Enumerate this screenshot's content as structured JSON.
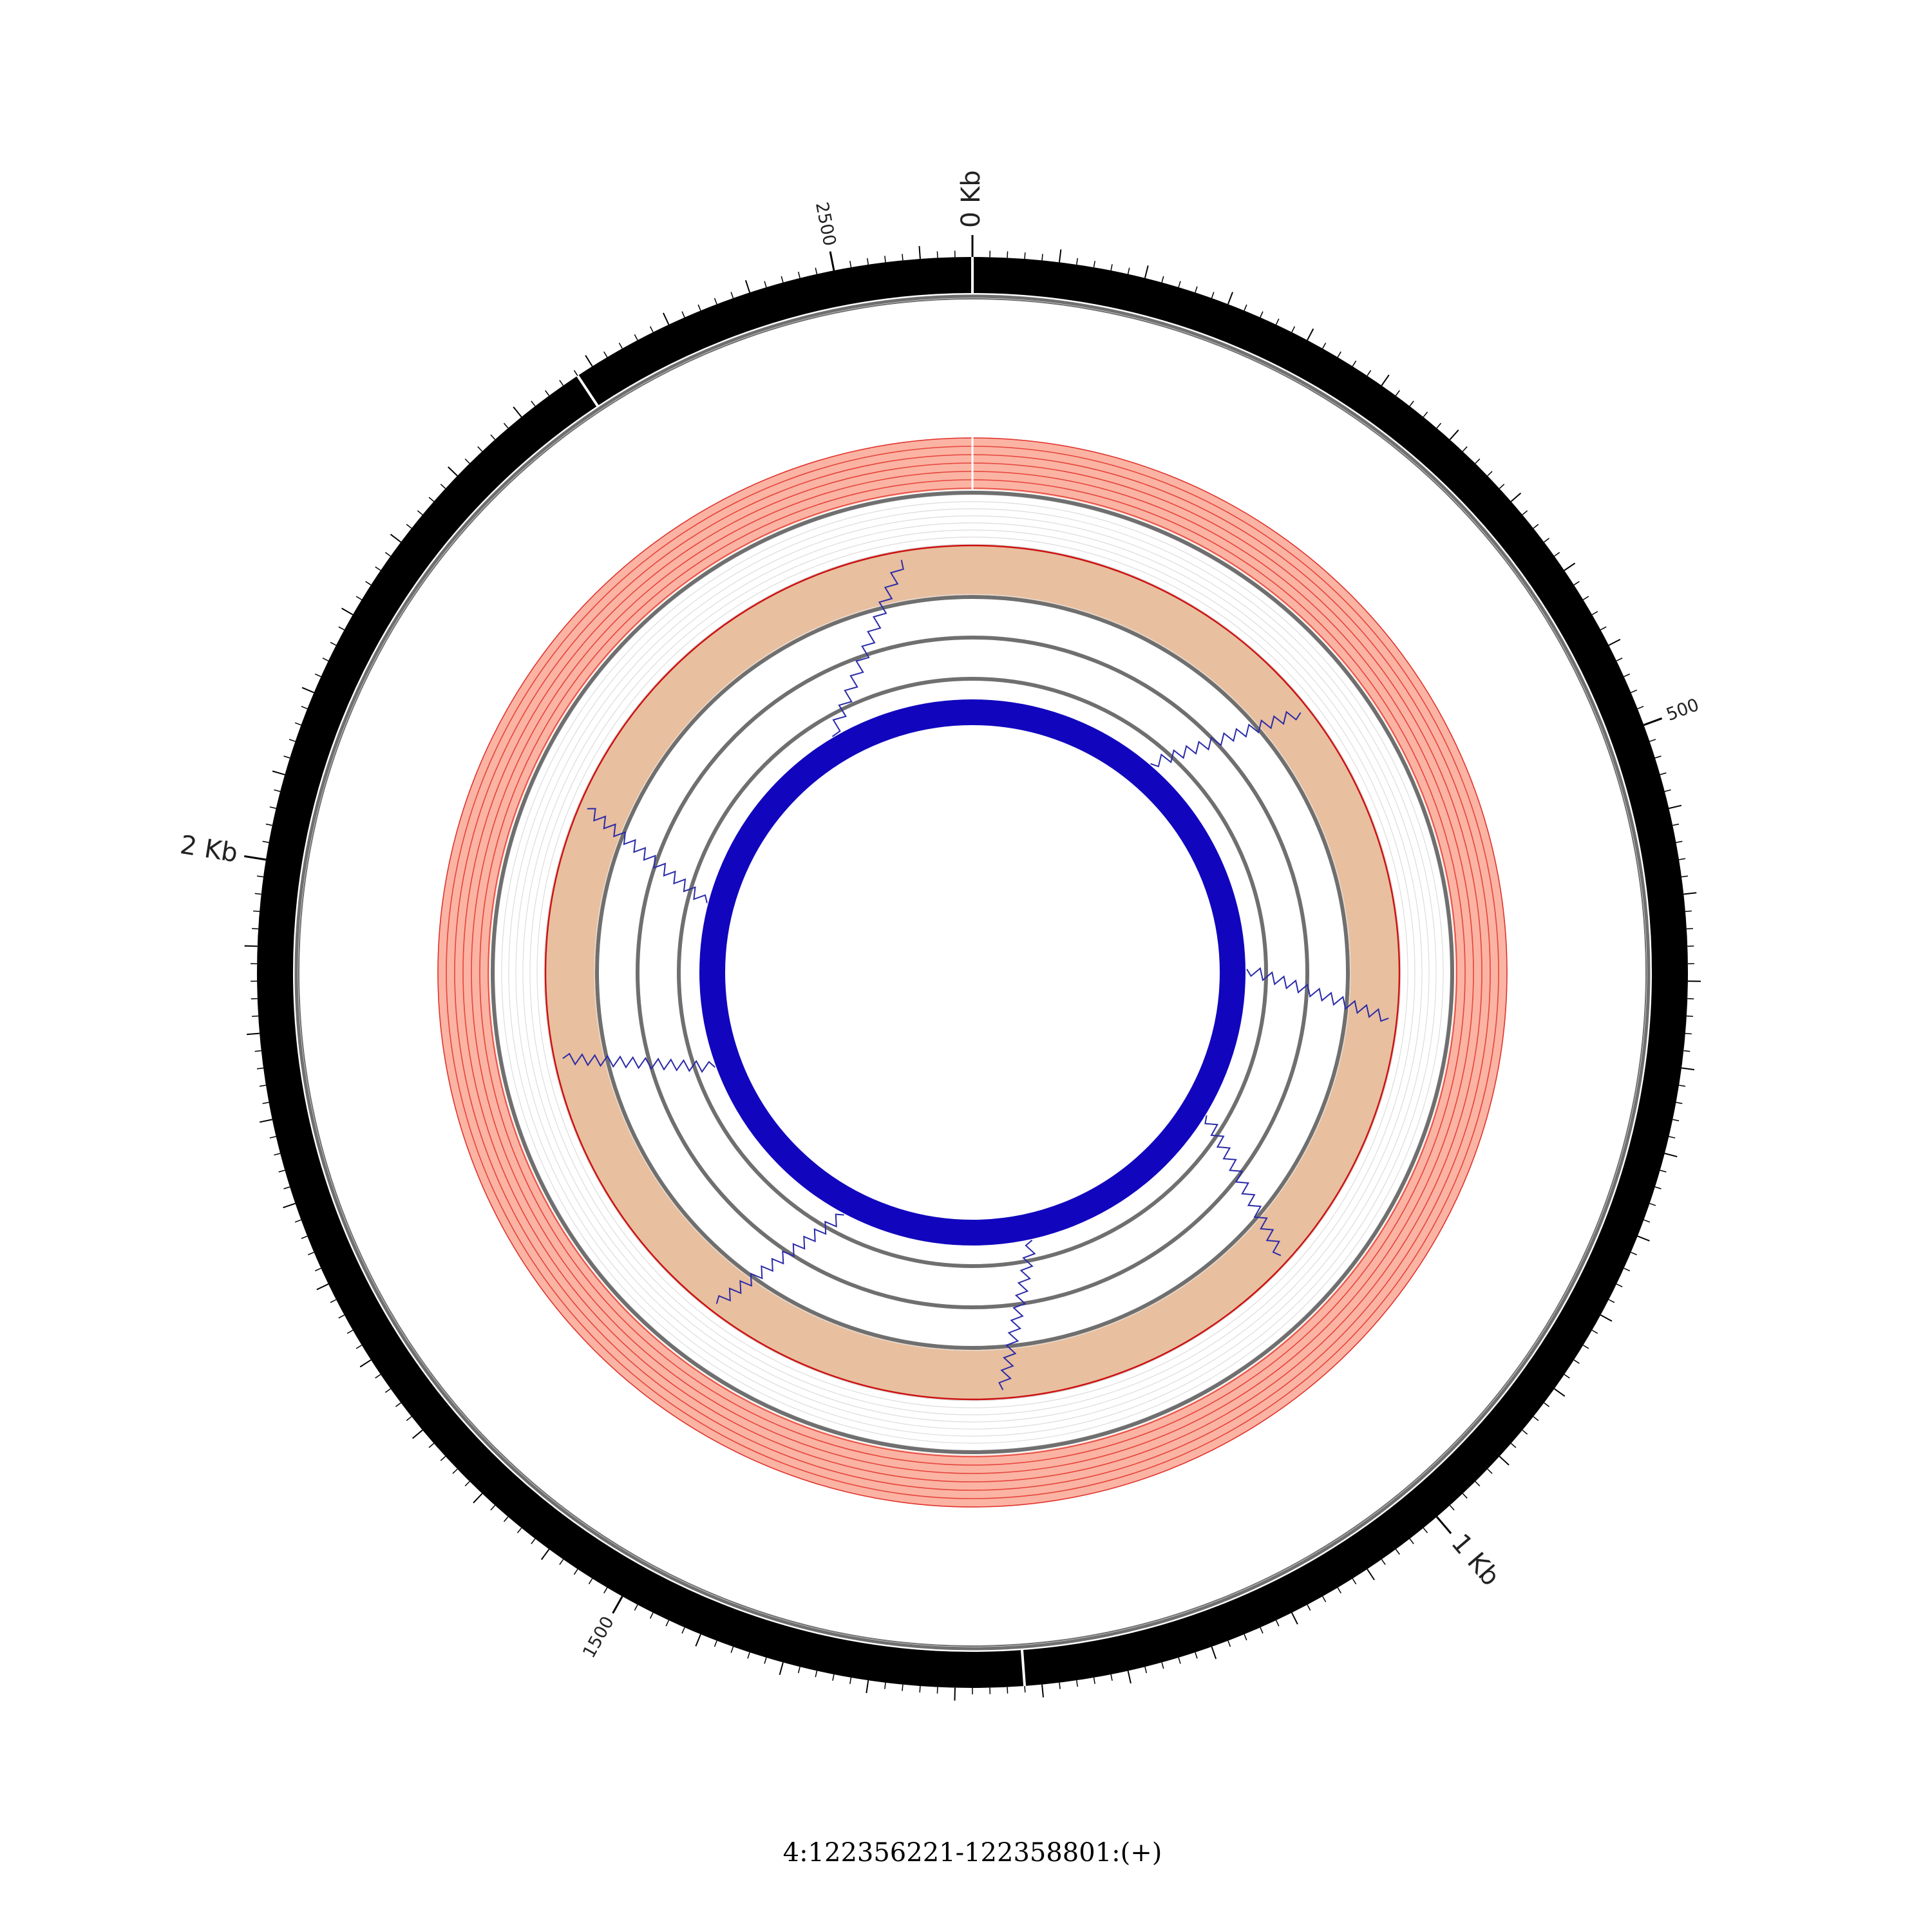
{
  "caption": "4:122356221-122358801:(+)",
  "genome": {
    "length_bp": 2580,
    "segment_boundaries_bp": [
      0,
      1260,
      2340
    ]
  },
  "scale": {
    "major_labels": [
      {
        "bp": 0,
        "text": "0 Kb"
      },
      {
        "bp": 1000,
        "text": "1 Kb"
      },
      {
        "bp": 2000,
        "text": "2 Kb"
      }
    ],
    "minor_labels": [
      {
        "bp": 500,
        "text": "500"
      },
      {
        "bp": 1500,
        "text": "1500"
      },
      {
        "bp": 2500,
        "text": "2500"
      }
    ]
  },
  "colors": {
    "ideogram": "#000000",
    "ring_outline": "#6f6f6f",
    "salmon_fill": "#fbb3a3",
    "salmon_line": "#e0302a",
    "tan_fill": "#e8bf9f",
    "tan_line": "#cc1111",
    "core_ring": "#1106bd",
    "link_line": "#2a2aa8"
  },
  "links": [
    {
      "from_bp": 2360,
      "to_bp": 2510
    },
    {
      "from_bp": 290,
      "to_bp": 370
    },
    {
      "from_bp": 640,
      "to_bp": 690
    },
    {
      "from_bp": 870,
      "to_bp": 950
    },
    {
      "from_bp": 1200,
      "to_bp": 1260
    },
    {
      "from_bp": 1490,
      "to_bp": 1560
    },
    {
      "from_bp": 1790,
      "to_bp": 1850
    },
    {
      "from_bp": 2040,
      "to_bp": 2100
    }
  ]
}
